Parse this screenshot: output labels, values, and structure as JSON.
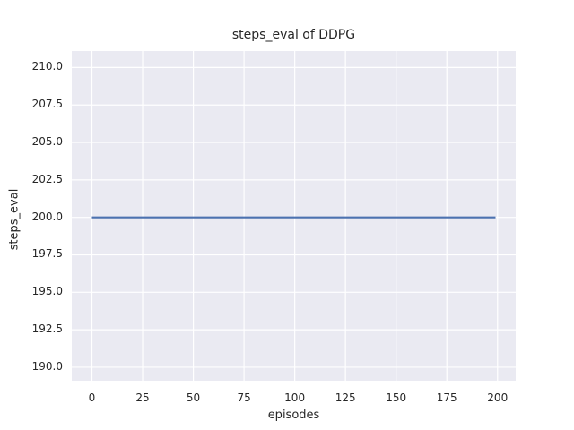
{
  "figure": {
    "background": "#ffffff"
  },
  "chart_data": {
    "type": "line",
    "title": "steps_eval of DDPG",
    "xlabel": "episodes",
    "ylabel": "steps_eval",
    "xlim": [
      -9.95,
      208.95
    ],
    "ylim": [
      189.1,
      211.1
    ],
    "xticks": [
      0,
      25,
      50,
      75,
      100,
      125,
      150,
      175,
      200
    ],
    "xtick_labels": [
      "0",
      "25",
      "50",
      "75",
      "100",
      "125",
      "150",
      "175",
      "200"
    ],
    "yticks": [
      190.0,
      192.5,
      195.0,
      197.5,
      200.0,
      202.5,
      205.0,
      207.5,
      210.0
    ],
    "ytick_labels": [
      "190.0",
      "192.5",
      "195.0",
      "197.5",
      "200.0",
      "202.5",
      "205.0",
      "207.5",
      "210.0"
    ],
    "grid": true,
    "legend": "none",
    "series": [
      {
        "name": "DDPG",
        "note": "constant steps_eval of 200 for every episode 0 through 199",
        "points": [
          [
            0,
            200
          ],
          [
            199,
            200
          ]
        ]
      }
    ],
    "style": {
      "axes_background": "#eaeaf2",
      "grid_color": "#ffffff",
      "line_color": "#4c72b0",
      "text_color": "#262626"
    }
  }
}
